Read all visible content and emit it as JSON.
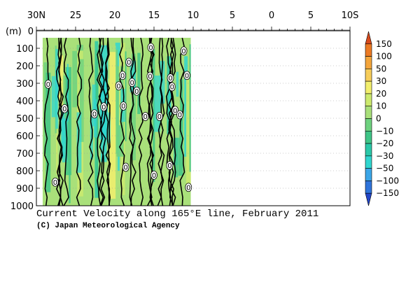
{
  "chart_data": {
    "type": "heatmap",
    "title": "Current Velocity along 165°E line, February 2011",
    "credit": "(C) Japan Meteorological Agency",
    "x_ticks": [
      "30N",
      "25",
      "20",
      "15",
      "10",
      "5",
      "0",
      "5",
      "10S"
    ],
    "x_tick_values": [
      30,
      25,
      20,
      15,
      10,
      5,
      0,
      -5,
      -10
    ],
    "xlim": [
      30,
      -10
    ],
    "y_unit": "(m)",
    "y_ticks": [
      "0",
      "100",
      "200",
      "300",
      "400",
      "500",
      "600",
      "700",
      "800",
      "900",
      "1000"
    ],
    "y_tick_values": [
      0,
      100,
      200,
      300,
      400,
      500,
      600,
      700,
      800,
      900,
      1000
    ],
    "ylim": [
      0,
      1000
    ],
    "data_extent": {
      "lat_from": 29.2,
      "lat_to": 10.3,
      "depth_from": 40,
      "depth_to": 1000
    },
    "colorbar": {
      "labels": [
        "150",
        "100",
        "50",
        "30",
        "20",
        "10",
        "0",
        "−10",
        "−20",
        "−30",
        "−50",
        "−100",
        "−150"
      ],
      "colors": [
        "#d84a1c",
        "#ec7a24",
        "#f4a53b",
        "#f7cd5a",
        "#f3ef6d",
        "#cdea6e",
        "#a9e07a",
        "#6ed27f",
        "#3fc587",
        "#2bc8a8",
        "#30d6cf",
        "#3ba6e8",
        "#2f74db",
        "#2346c8"
      ]
    },
    "contour_labels": [
      {
        "text": "0",
        "lat": 18.2,
        "depth": 180
      },
      {
        "text": "0",
        "lat": 15.4,
        "depth": 95
      },
      {
        "text": "0",
        "lat": 11.2,
        "depth": 115
      },
      {
        "text": "0",
        "lat": 28.5,
        "depth": 305
      },
      {
        "text": "0",
        "lat": 19.0,
        "depth": 255
      },
      {
        "text": "0",
        "lat": 17.8,
        "depth": 295
      },
      {
        "text": "0",
        "lat": 15.5,
        "depth": 260
      },
      {
        "text": "0",
        "lat": 19.5,
        "depth": 315
      },
      {
        "text": "0",
        "lat": 17.2,
        "depth": 345
      },
      {
        "text": "0",
        "lat": 12.9,
        "depth": 270
      },
      {
        "text": "0",
        "lat": 12.7,
        "depth": 320
      },
      {
        "text": "0",
        "lat": 10.8,
        "depth": 255
      },
      {
        "text": "0",
        "lat": 26.4,
        "depth": 445
      },
      {
        "text": "0",
        "lat": 22.6,
        "depth": 475
      },
      {
        "text": "0",
        "lat": 21.4,
        "depth": 435
      },
      {
        "text": "0",
        "lat": 18.9,
        "depth": 430
      },
      {
        "text": "0",
        "lat": 16.1,
        "depth": 490
      },
      {
        "text": "0",
        "lat": 14.3,
        "depth": 490
      },
      {
        "text": "0",
        "lat": 12.3,
        "depth": 455
      },
      {
        "text": "0",
        "lat": 11.7,
        "depth": 480
      },
      {
        "text": "0",
        "lat": 18.6,
        "depth": 780
      },
      {
        "text": "0",
        "lat": 15.0,
        "depth": 825
      },
      {
        "text": "0",
        "lat": 13.0,
        "depth": 770
      },
      {
        "text": "0",
        "lat": 27.6,
        "depth": 865
      },
      {
        "text": "0",
        "lat": 10.6,
        "depth": 895
      }
    ]
  }
}
